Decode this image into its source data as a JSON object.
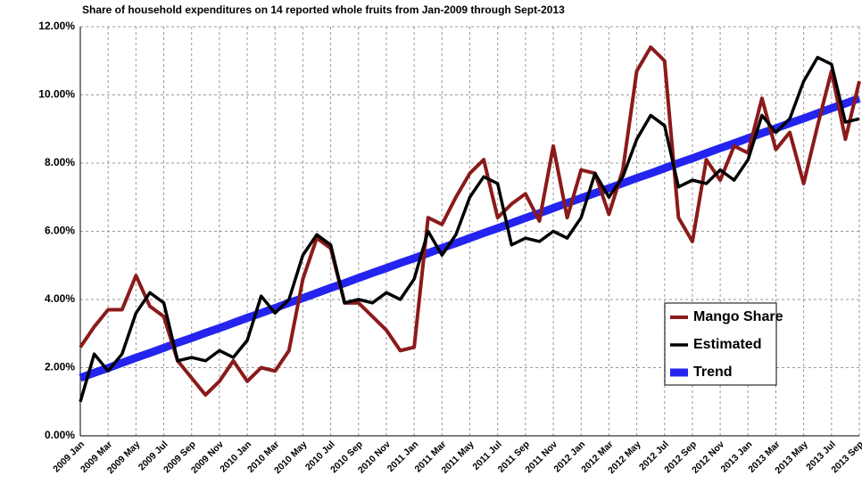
{
  "chart_data": {
    "type": "line",
    "title": "Share of household expenditures on 14 reported whole fruits from Jan-2009 through Sept-2013",
    "categories": [
      "2009 Jan",
      null,
      "2009 Mar",
      null,
      "2009 May",
      null,
      "2009 Jul",
      null,
      "2009 Sep",
      null,
      "2009 Nov",
      null,
      "2010 Jan",
      null,
      "2010 Mar",
      null,
      "2010 May",
      null,
      "2010 Jul",
      null,
      "2010 Sep",
      null,
      "2010 Nov",
      null,
      "2011 Jan",
      null,
      "2011 Mar",
      null,
      "2011 May",
      null,
      "2011 Jul",
      null,
      "2011 Sep",
      null,
      "2011 Nov",
      null,
      "2012 Jan",
      null,
      "2012 Mar",
      null,
      "2012 May",
      null,
      "2012 Jul",
      null,
      "2012 Sep",
      null,
      "2012 Nov",
      null,
      "2013 Jan",
      null,
      "2013 Mar",
      null,
      "2013 May",
      null,
      "2013 Jul",
      null,
      "2013 Sep"
    ],
    "series": [
      {
        "name": "Mango Share",
        "color": "#8b1a1a",
        "width": 4,
        "values": [
          2.6,
          3.2,
          3.7,
          3.7,
          4.7,
          3.8,
          3.5,
          2.2,
          1.7,
          1.2,
          1.6,
          2.2,
          1.6,
          2.0,
          1.9,
          2.5,
          4.6,
          5.8,
          5.5,
          3.9,
          3.9,
          3.5,
          3.1,
          2.5,
          2.6,
          6.4,
          6.2,
          7.0,
          7.7,
          8.1,
          6.4,
          6.8,
          7.1,
          6.3,
          8.5,
          6.4,
          7.8,
          7.7,
          6.5,
          7.8,
          10.7,
          11.4,
          11.0,
          6.4,
          5.7,
          8.1,
          7.5,
          8.5,
          8.3,
          9.9,
          8.4,
          8.9,
          7.4,
          9.1,
          10.7,
          8.7,
          10.4
        ]
      },
      {
        "name": "Estimated",
        "color": "#000000",
        "width": 3.5,
        "values": [
          1.0,
          2.4,
          1.9,
          2.4,
          3.6,
          4.2,
          3.9,
          2.2,
          2.3,
          2.2,
          2.5,
          2.3,
          2.8,
          4.1,
          3.6,
          4.0,
          5.3,
          5.9,
          5.6,
          3.9,
          4.0,
          3.9,
          4.2,
          4.0,
          4.6,
          6.0,
          5.3,
          5.9,
          7.0,
          7.6,
          7.4,
          5.6,
          5.8,
          5.7,
          6.0,
          5.8,
          6.4,
          7.7,
          7.0,
          7.6,
          8.7,
          9.4,
          9.1,
          7.3,
          7.5,
          7.4,
          7.8,
          7.5,
          8.1,
          9.4,
          8.9,
          9.3,
          10.4,
          11.1,
          10.9,
          9.2,
          9.3
        ]
      },
      {
        "name": "Trend",
        "color": "#2424f0",
        "width": 9,
        "values": [
          1.7,
          1.85,
          1.99,
          2.14,
          2.29,
          2.43,
          2.58,
          2.73,
          2.87,
          3.02,
          3.16,
          3.31,
          3.46,
          3.6,
          3.75,
          3.9,
          4.04,
          4.19,
          4.34,
          4.48,
          4.63,
          4.78,
          4.92,
          5.07,
          5.21,
          5.36,
          5.51,
          5.65,
          5.8,
          5.95,
          6.09,
          6.24,
          6.39,
          6.53,
          6.68,
          6.83,
          6.97,
          7.12,
          7.26,
          7.41,
          7.56,
          7.7,
          7.85,
          8.0,
          8.14,
          8.29,
          8.44,
          8.58,
          8.73,
          8.88,
          9.02,
          9.17,
          9.31,
          9.46,
          9.61,
          9.75,
          9.9
        ]
      }
    ],
    "ylim": [
      0,
      12
    ],
    "yticks": [
      {
        "value": 0,
        "label": "0.00%"
      },
      {
        "value": 2,
        "label": "2.00%"
      },
      {
        "value": 4,
        "label": "4.00%"
      },
      {
        "value": 6,
        "label": "6.00%"
      },
      {
        "value": 8,
        "label": "8.00%"
      },
      {
        "value": 10,
        "label": "10.00%"
      },
      {
        "value": 12,
        "label": "12.00%"
      }
    ],
    "grid": true,
    "legend": "right"
  }
}
